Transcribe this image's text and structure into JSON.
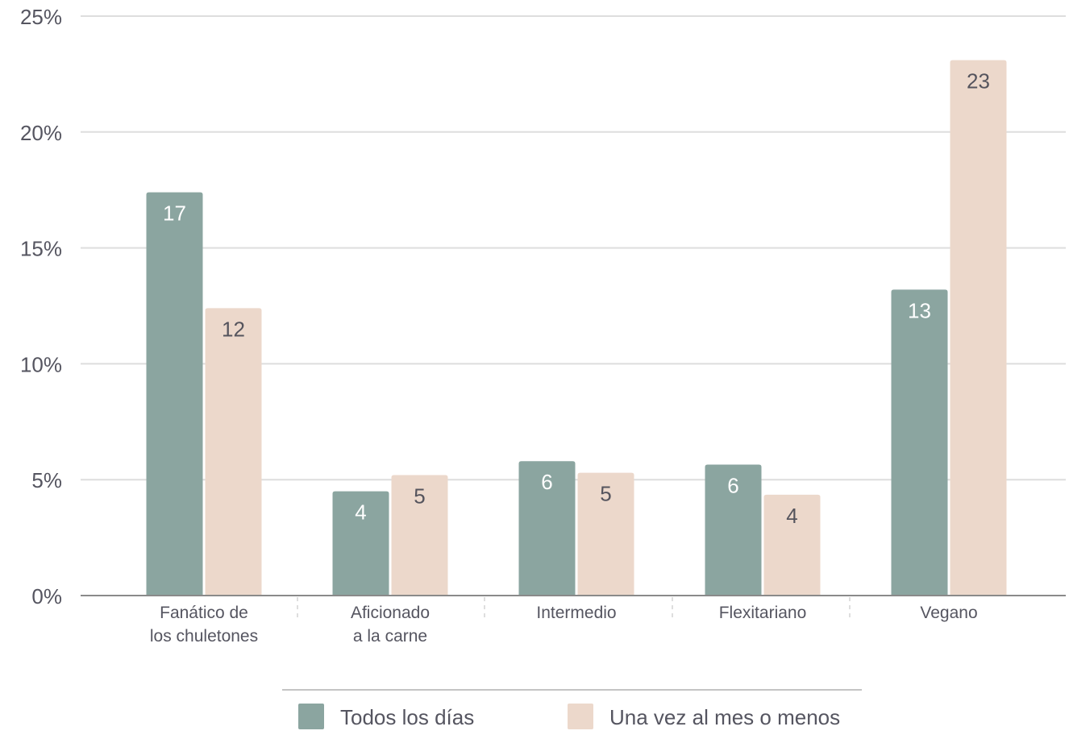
{
  "colors": {
    "series_1": "#8ba5a0",
    "series_2": "#ecd8cb",
    "label_on_dark": "#ffffff",
    "label_on_light": "#55545d",
    "grid": "#dedede",
    "axis": "#8a8a8a",
    "text": "#555560"
  },
  "chart_data": {
    "type": "bar",
    "title": "",
    "xlabel": "",
    "ylabel": "",
    "ylim": [
      0,
      25
    ],
    "y_ticks": [
      0,
      5,
      10,
      15,
      20,
      25
    ],
    "y_tick_labels": [
      "0%",
      "5%",
      "10%",
      "15%",
      "20%",
      "25%"
    ],
    "grid": true,
    "legend_position": "bottom",
    "categories": [
      [
        "Fanático de",
        "los chuletones"
      ],
      [
        "Aficionado",
        "a la carne"
      ],
      [
        "Intermedio"
      ],
      [
        "Flexitariano"
      ],
      [
        "Vegano"
      ]
    ],
    "series": [
      {
        "name": "Todos los días",
        "values": [
          17.4,
          4.5,
          5.8,
          5.65,
          13.2
        ],
        "labels": [
          "17",
          "4",
          "6",
          "6",
          "13"
        ]
      },
      {
        "name": "Una vez al mes o menos",
        "values": [
          12.4,
          5.2,
          5.3,
          4.35,
          23.1
        ],
        "labels": [
          "12",
          "5",
          "5",
          "4",
          "23"
        ]
      }
    ]
  }
}
